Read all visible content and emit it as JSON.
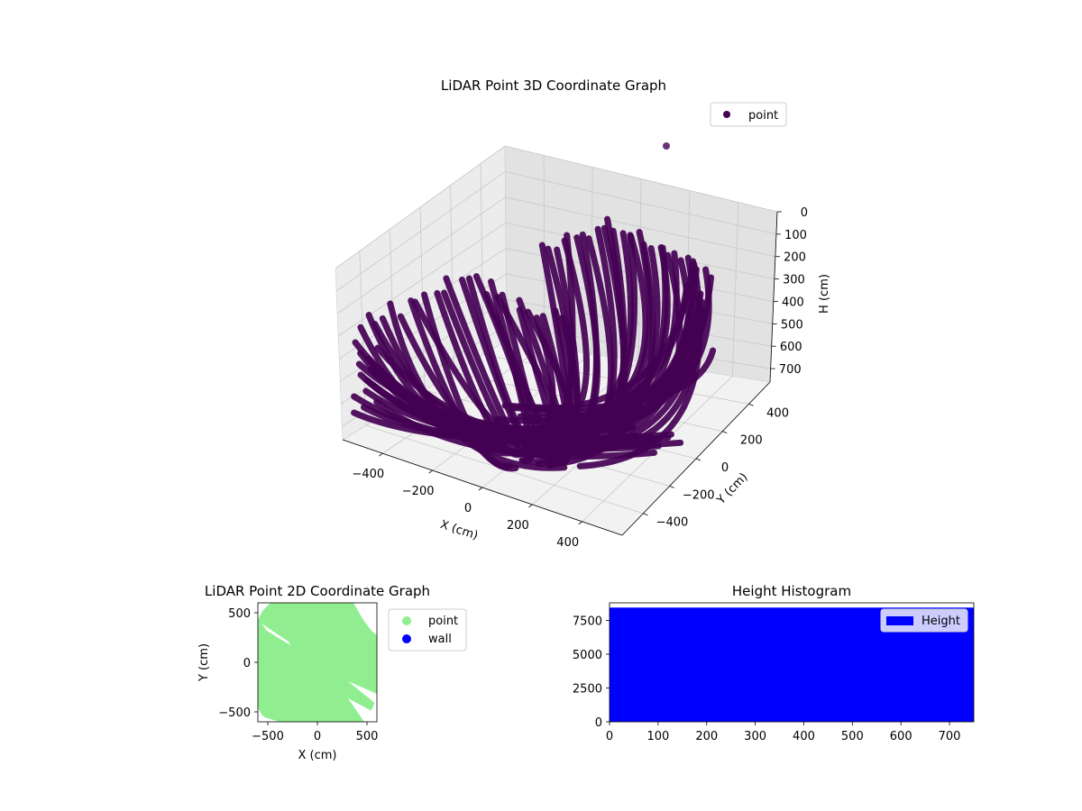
{
  "chart_data": [
    {
      "type": "scatter3d",
      "title": "LiDAR Point 3D Coordinate Graph",
      "xlabel": "X (cm)",
      "ylabel": "Y (cm)",
      "zlabel": "H (cm)",
      "xlim": [
        -560,
        560
      ],
      "ylim": [
        -560,
        560
      ],
      "zlim": [
        760,
        0
      ],
      "xticks": [
        "−400",
        "−200",
        "0",
        "200",
        "400"
      ],
      "yticks": [
        "−400",
        "−200",
        "0",
        "200",
        "400"
      ],
      "zticks": [
        "0",
        "100",
        "200",
        "300",
        "400",
        "500",
        "600",
        "700"
      ],
      "grid": true,
      "legend": {
        "placement": "top-right",
        "entries": [
          {
            "label": "point",
            "color": "#440154"
          }
        ]
      },
      "series": [
        {
          "name": "point",
          "color": "#440154",
          "description_points": "dense bowl of curved LiDAR scan arcs, one outlier near top"
        }
      ]
    },
    {
      "type": "scatter",
      "title": "LiDAR Point 2D Coordinate Graph",
      "xlabel": "X (cm)",
      "ylabel": "Y (cm)",
      "xlim": [
        -600,
        600
      ],
      "ylim": [
        -600,
        600
      ],
      "xticks": [
        "−500",
        "0",
        "500"
      ],
      "yticks": [
        "−500",
        "0",
        "500"
      ],
      "legend": {
        "placement": "outside-right",
        "entries": [
          {
            "label": "point",
            "color": "#90ee90"
          },
          {
            "label": "wall",
            "color": "#0000ff"
          }
        ]
      },
      "series": [
        {
          "name": "point",
          "color": "#90ee90"
        },
        {
          "name": "wall",
          "color": "#0000ff"
        }
      ]
    },
    {
      "type": "bar",
      "title": "Height Histogram",
      "xlim": [
        0,
        750
      ],
      "ylim": [
        0,
        8800
      ],
      "xticks": [
        "0",
        "100",
        "200",
        "300",
        "400",
        "500",
        "600",
        "700"
      ],
      "yticks": [
        "0",
        "2500",
        "5000",
        "7500"
      ],
      "legend": {
        "placement": "top-right",
        "entries": [
          {
            "label": "Height",
            "color": "#0000ff"
          }
        ]
      },
      "series": [
        {
          "name": "Height",
          "color": "#0000ff",
          "bins": [
            [
              0,
              750,
              8450
            ]
          ]
        }
      ]
    }
  ]
}
